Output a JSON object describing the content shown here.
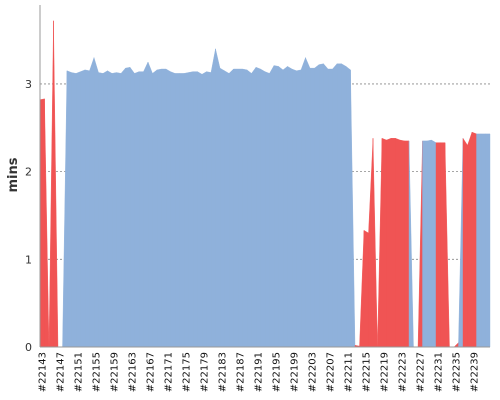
{
  "chart_data": {
    "type": "area",
    "title": "",
    "xlabel": "",
    "ylabel": "mins",
    "ylim": [
      0,
      3.9
    ],
    "yticks": [
      0,
      1,
      2,
      3
    ],
    "grid": "horizontal-dashed",
    "legend": "none",
    "x": [
      "#22143",
      "#22144",
      "#22145",
      "#22146",
      "#22147",
      "#22148",
      "#22149",
      "#22150",
      "#22151",
      "#22152",
      "#22153",
      "#22154",
      "#22155",
      "#22156",
      "#22157",
      "#22158",
      "#22159",
      "#22160",
      "#22161",
      "#22162",
      "#22163",
      "#22164",
      "#22165",
      "#22166",
      "#22167",
      "#22168",
      "#22169",
      "#22170",
      "#22171",
      "#22172",
      "#22173",
      "#22174",
      "#22175",
      "#22176",
      "#22177",
      "#22178",
      "#22179",
      "#22180",
      "#22181",
      "#22182",
      "#22183",
      "#22184",
      "#22185",
      "#22186",
      "#22187",
      "#22188",
      "#22189",
      "#22190",
      "#22191",
      "#22192",
      "#22193",
      "#22194",
      "#22195",
      "#22196",
      "#22197",
      "#22198",
      "#22199",
      "#22200",
      "#22201",
      "#22202",
      "#22203",
      "#22204",
      "#22205",
      "#22206",
      "#22207",
      "#22208",
      "#22209",
      "#22210",
      "#22211",
      "#22212",
      "#22213",
      "#22214",
      "#22215",
      "#22216",
      "#22217",
      "#22218",
      "#22219",
      "#22220",
      "#22221",
      "#22222",
      "#22223",
      "#22224",
      "#22225",
      "#22226",
      "#22227",
      "#22228",
      "#22229",
      "#22230",
      "#22231",
      "#22232",
      "#22233",
      "#22234",
      "#22235",
      "#22236",
      "#22237",
      "#22238",
      "#22239",
      "#22240",
      "#22241",
      "#22242"
    ],
    "x_tick_labels": [
      "#22143",
      "#22147",
      "#22151",
      "#22155",
      "#22159",
      "#22163",
      "#22167",
      "#22171",
      "#22175",
      "#22179",
      "#22183",
      "#22187",
      "#22191",
      "#22195",
      "#22199",
      "#22203",
      "#22207",
      "#22211",
      "#22215",
      "#22219",
      "#22223",
      "#22227",
      "#22231",
      "#22235",
      "#22239"
    ],
    "values": [
      2.82,
      2.83,
      0,
      3.72,
      0,
      0,
      3.15,
      3.13,
      3.12,
      3.14,
      3.16,
      3.15,
      3.3,
      3.13,
      3.12,
      3.15,
      3.12,
      3.13,
      3.12,
      3.18,
      3.19,
      3.12,
      3.14,
      3.14,
      3.25,
      3.12,
      3.16,
      3.17,
      3.17,
      3.14,
      3.12,
      3.12,
      3.12,
      3.13,
      3.14,
      3.14,
      3.11,
      3.14,
      3.13,
      3.4,
      3.18,
      3.15,
      3.12,
      3.17,
      3.17,
      3.17,
      3.16,
      3.12,
      3.19,
      3.17,
      3.14,
      3.12,
      3.21,
      3.2,
      3.16,
      3.2,
      3.17,
      3.15,
      3.16,
      3.3,
      3.18,
      3.18,
      3.22,
      3.23,
      3.17,
      3.17,
      3.23,
      3.23,
      3.2,
      3.16,
      0.02,
      0.01,
      1.33,
      1.3,
      2.38,
      0,
      2.38,
      2.36,
      2.38,
      2.38,
      2.36,
      2.35,
      2.35,
      0,
      0,
      2.35,
      2.35,
      2.36,
      2.33,
      2.33,
      2.33,
      0,
      0,
      0.05,
      2.38,
      2.3,
      2.45,
      2.43,
      2.43,
      2.43
    ],
    "series_colors": {
      "normal": "#8fb1db",
      "flagged": "#f05454",
      "missing": "#c8c8c8"
    },
    "flagged": [
      true,
      true,
      true,
      true,
      true,
      false,
      false,
      false,
      false,
      false,
      false,
      false,
      false,
      false,
      false,
      false,
      false,
      false,
      false,
      false,
      false,
      false,
      false,
      false,
      false,
      false,
      false,
      false,
      false,
      false,
      false,
      false,
      false,
      false,
      false,
      false,
      false,
      false,
      false,
      false,
      false,
      false,
      false,
      false,
      false,
      false,
      false,
      false,
      false,
      false,
      false,
      false,
      false,
      false,
      false,
      false,
      false,
      false,
      false,
      false,
      false,
      false,
      false,
      false,
      false,
      false,
      false,
      false,
      false,
      false,
      true,
      true,
      true,
      true,
      true,
      true,
      true,
      true,
      true,
      true,
      true,
      true,
      false,
      true,
      true,
      false,
      false,
      false,
      true,
      true,
      true,
      true,
      true,
      false,
      true,
      true,
      true,
      false,
      false,
      false
    ]
  }
}
